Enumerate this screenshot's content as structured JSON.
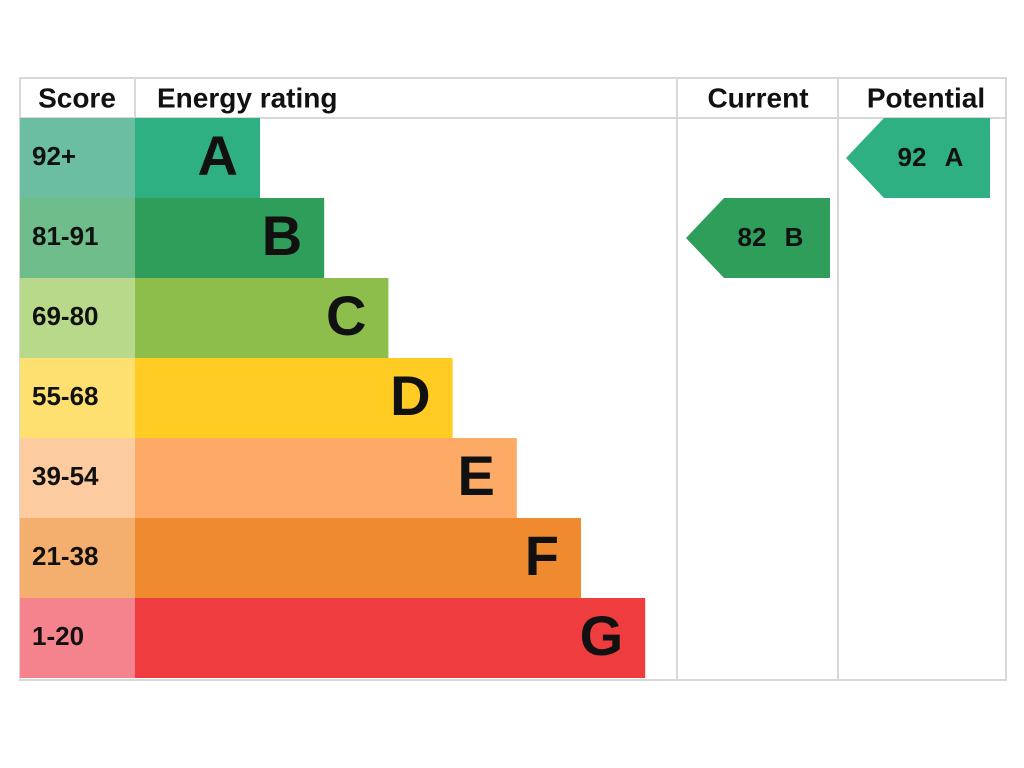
{
  "header": {
    "score": "Score",
    "energy_rating": "Energy rating",
    "current": "Current",
    "potential": "Potential"
  },
  "bands": [
    {
      "score": "92+",
      "rating": "A",
      "color": "#2fb082",
      "score_color": "#6cbea3"
    },
    {
      "score": "81-91",
      "rating": "B",
      "color": "#2e9e5a",
      "score_color": "#6fbd8a"
    },
    {
      "score": "69-80",
      "rating": "C",
      "color": "#8dbd4a",
      "score_color": "#b9d98a"
    },
    {
      "score": "55-68",
      "rating": "D",
      "color": "#fecc23",
      "score_color": "#fde06f"
    },
    {
      "score": "39-54",
      "rating": "E",
      "color": "#fcaa65",
      "score_color": "#fdcba0"
    },
    {
      "score": "21-38",
      "rating": "F",
      "color": "#ef8a2e",
      "score_color": "#f4ae6e"
    },
    {
      "score": "1-20",
      "rating": "G",
      "color": "#ee3c3f",
      "score_color": "#f4838d"
    }
  ],
  "current": {
    "score": 82,
    "rating": "B",
    "color": "#2e9e5a"
  },
  "potential": {
    "score": 92,
    "rating": "A",
    "color": "#2fb082"
  }
}
